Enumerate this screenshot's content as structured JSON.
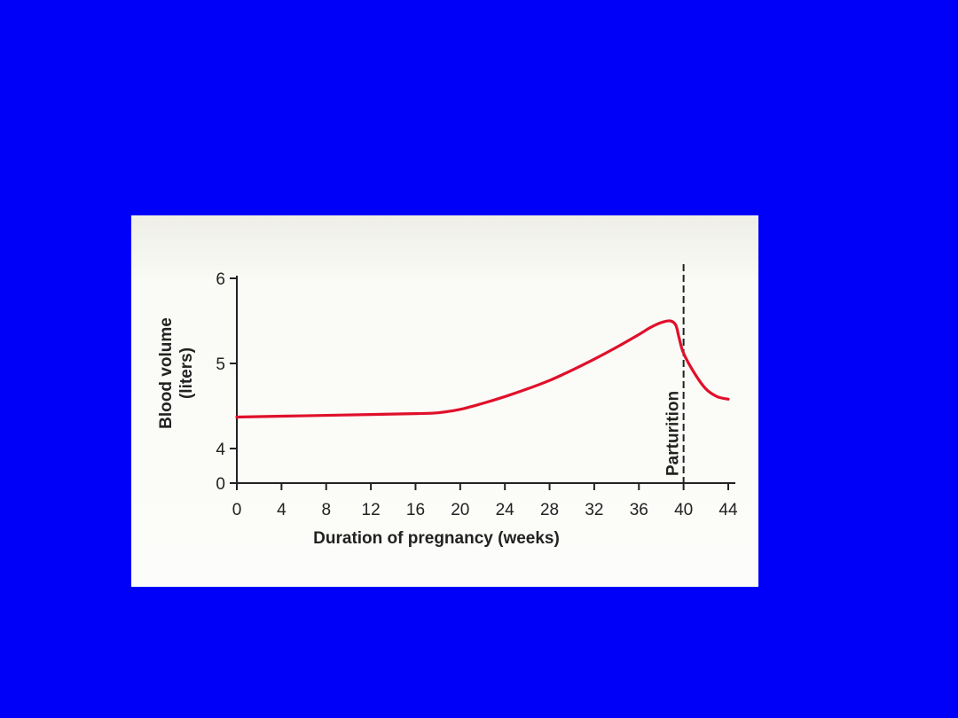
{
  "colors": {
    "background": "#0000f8",
    "panel": "#fafaf6",
    "series": "#e0102a",
    "axis": "#222222"
  },
  "chart_data": {
    "type": "line",
    "xlabel": "Duration of pregnancy (weeks)",
    "ylabel_line1": "Blood volume",
    "ylabel_line2": "(liters)",
    "x_ticks": [
      0,
      4,
      8,
      12,
      16,
      20,
      24,
      28,
      32,
      36,
      40,
      44
    ],
    "y_ticks": [
      0,
      4,
      5,
      6
    ],
    "y_axis_break": "axis jumps from 0 directly to 4",
    "xlim": [
      0,
      44
    ],
    "ylim": [
      0,
      6
    ],
    "grid": false,
    "annotations": [
      {
        "text": "Parturition",
        "x": 40,
        "style": "dashed vertical line"
      }
    ],
    "series": [
      {
        "color": "#e0102a",
        "points": [
          [
            0,
            4.37
          ],
          [
            4,
            4.38
          ],
          [
            8,
            4.39
          ],
          [
            12,
            4.4
          ],
          [
            16,
            4.41
          ],
          [
            18,
            4.42
          ],
          [
            20,
            4.46
          ],
          [
            22,
            4.53
          ],
          [
            24,
            4.61
          ],
          [
            26,
            4.7
          ],
          [
            28,
            4.8
          ],
          [
            30,
            4.92
          ],
          [
            32,
            5.05
          ],
          [
            34,
            5.19
          ],
          [
            36,
            5.34
          ],
          [
            37,
            5.42
          ],
          [
            38,
            5.48
          ],
          [
            38.8,
            5.5
          ],
          [
            39.3,
            5.45
          ],
          [
            39.6,
            5.3
          ],
          [
            40,
            5.12
          ],
          [
            41,
            4.88
          ],
          [
            42,
            4.7
          ],
          [
            43,
            4.61
          ],
          [
            44,
            4.58
          ]
        ]
      }
    ]
  }
}
